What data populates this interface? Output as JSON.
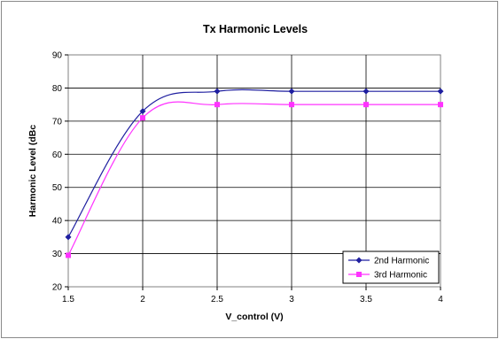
{
  "chart_data": {
    "type": "line",
    "title": "Tx Harmonic Levels",
    "xlabel": "V_control (V)",
    "ylabel": "Harmonic Level (dBc",
    "x": [
      1.5,
      2,
      2.5,
      3,
      3.5,
      4
    ],
    "xticks": [
      "1.5",
      "2",
      "2.5",
      "3",
      "3.5",
      "4"
    ],
    "yticks": [
      "20",
      "30",
      "40",
      "50",
      "60",
      "70",
      "80",
      "90"
    ],
    "xlim": [
      1.5,
      4
    ],
    "ylim": [
      20,
      90
    ],
    "grid": true,
    "legend_position": "bottom-right",
    "series": [
      {
        "name": "2nd Harmonic",
        "values": [
          35,
          73,
          79,
          79,
          79,
          79
        ],
        "color": "#1f1fa0",
        "marker": "diamond"
      },
      {
        "name": "3rd Harmonic",
        "values": [
          29.5,
          71,
          75,
          75,
          75,
          75
        ],
        "color": "#ff33ff",
        "marker": "square"
      }
    ]
  }
}
